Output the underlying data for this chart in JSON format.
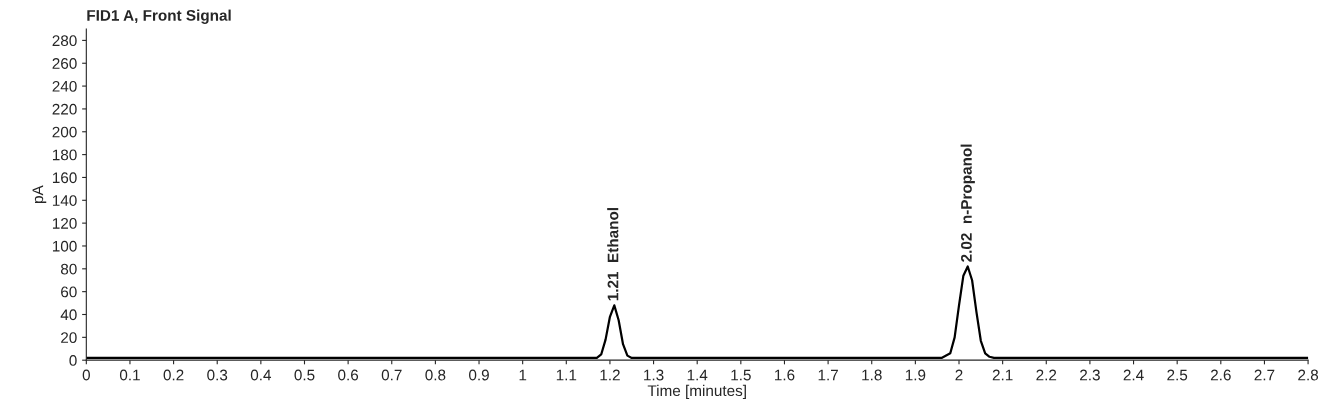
{
  "chart_data": {
    "type": "line",
    "title": "FID1 A, Front Signal",
    "xlabel": "Time [minutes]",
    "ylabel": "pA",
    "x": [
      0,
      1.17,
      1.18,
      1.19,
      1.2,
      1.21,
      1.22,
      1.23,
      1.24,
      1.25,
      1.96,
      1.98,
      1.99,
      2.0,
      2.01,
      2.02,
      2.03,
      2.04,
      2.05,
      2.06,
      2.07,
      2.08,
      2.8
    ],
    "series": [
      {
        "color": "#000000",
        "values": [
          2,
          2,
          5,
          18,
          38,
          48,
          35,
          14,
          4,
          2,
          2,
          6,
          20,
          48,
          74,
          82,
          70,
          42,
          17,
          6,
          3,
          2,
          2
        ]
      }
    ],
    "xlim": [
      0,
      2.8
    ],
    "ylim": [
      0,
      290
    ],
    "xticks": [
      0,
      0.1,
      0.2,
      0.3,
      0.4,
      0.5,
      0.6,
      0.7,
      0.8,
      0.9,
      1,
      1.1,
      1.2,
      1.3,
      1.4,
      1.5,
      1.6,
      1.7,
      1.8,
      1.9,
      2,
      2.1,
      2.2,
      2.3,
      2.4,
      2.5,
      2.6,
      2.7,
      2.8
    ],
    "yticks": [
      0,
      20,
      40,
      60,
      80,
      100,
      120,
      140,
      160,
      180,
      200,
      220,
      240,
      260,
      280
    ],
    "annotations": [
      {
        "text": "1.21  Ethanol",
        "x": 1.21,
        "y": 48
      },
      {
        "text": "2.02  n-Propanol",
        "x": 2.02,
        "y": 82
      }
    ],
    "grid": false,
    "marker": "none",
    "line_style": "solid"
  }
}
